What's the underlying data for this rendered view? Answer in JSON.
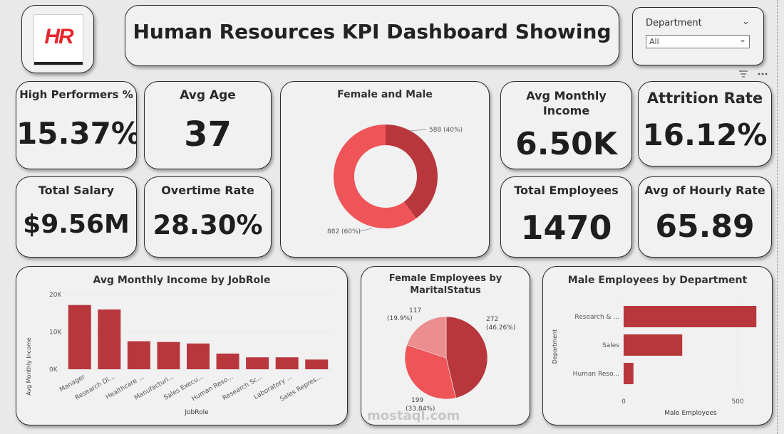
{
  "header": {
    "logo_text": "HR",
    "title": "Human Resources KPI Dashboard  Showing"
  },
  "filter": {
    "label": "Department",
    "value": "All",
    "options": [
      "All"
    ]
  },
  "toolbar": {
    "filter_icon": "filter-icon",
    "more_icon": "more-options-icon"
  },
  "kpis": {
    "high_performers": {
      "label": "High Performers %",
      "value": "15.37%"
    },
    "avg_age": {
      "label": "Avg Age",
      "value": "37"
    },
    "avg_monthly_income": {
      "label": "Avg Monthly Income",
      "value": "6.50K"
    },
    "attrition_rate": {
      "label": "Attrition Rate",
      "value": "16.12%"
    },
    "total_salary": {
      "label": "Total Salary",
      "value": "$9.56M"
    },
    "overtime_rate": {
      "label": "Overtime Rate",
      "value": "28.30%"
    },
    "total_employees": {
      "label": "Total Employees",
      "value": "1470"
    },
    "avg_hourly_rate": {
      "label": "Avg of Hourly Rate",
      "value": "65.89"
    }
  },
  "colors": {
    "dark_red": "#b8373d",
    "mid_red": "#ef5558",
    "light_red": "#ec8d8f"
  },
  "chart_data": [
    {
      "type": "pie",
      "variant": "donut",
      "title": "Female and Male",
      "slices": [
        {
          "label": "588 (40%)",
          "value": 588,
          "color": "#b8373d"
        },
        {
          "label": "882 (60%)",
          "value": 882,
          "color": "#ef5558"
        }
      ]
    },
    {
      "type": "bar",
      "title": "Avg Monthly Income by JobRole",
      "xlabel": "JobRole",
      "ylabel": "Avg Monthly Income",
      "categories": [
        "Manager",
        "Research Di...",
        "Healthcare ...",
        "Manufacturi...",
        "Sales Execu...",
        "Human Reso...",
        "Research Sc...",
        "Laboratory ...",
        "Sales Repres..."
      ],
      "values": [
        17200,
        16000,
        7500,
        7300,
        6900,
        4200,
        3200,
        3200,
        2600
      ],
      "ylim": [
        0,
        20000
      ],
      "yticks": [
        "0K",
        "10K",
        "20K"
      ],
      "color": "#b8373d"
    },
    {
      "type": "pie",
      "title": "Female Employees by MaritalStatus",
      "title_lines": [
        "Female Employees by",
        "MaritalStatus"
      ],
      "slices": [
        {
          "value": 272,
          "label_count": "272",
          "label_pct": "(46.26%)",
          "color": "#b8373d"
        },
        {
          "value": 199,
          "label_count": "199",
          "label_pct": "(33.84%)",
          "color": "#ef5558"
        },
        {
          "value": 117,
          "label_count": "117",
          "label_pct": "(19.9%)",
          "color": "#ec8d8f"
        }
      ]
    },
    {
      "type": "bar",
      "orientation": "horizontal",
      "title": "Male Employees by Department",
      "xlabel": "Male Employees",
      "ylabel": "Department",
      "categories": [
        "Research & ...",
        "Sales",
        "Human Reso..."
      ],
      "values": [
        582,
        257,
        43
      ],
      "xlim": [
        0,
        600
      ],
      "xticks": [
        "0",
        "500"
      ],
      "xtick_values": [
        0,
        500
      ],
      "color": "#b8373d"
    }
  ],
  "watermark": "mostaql.com"
}
